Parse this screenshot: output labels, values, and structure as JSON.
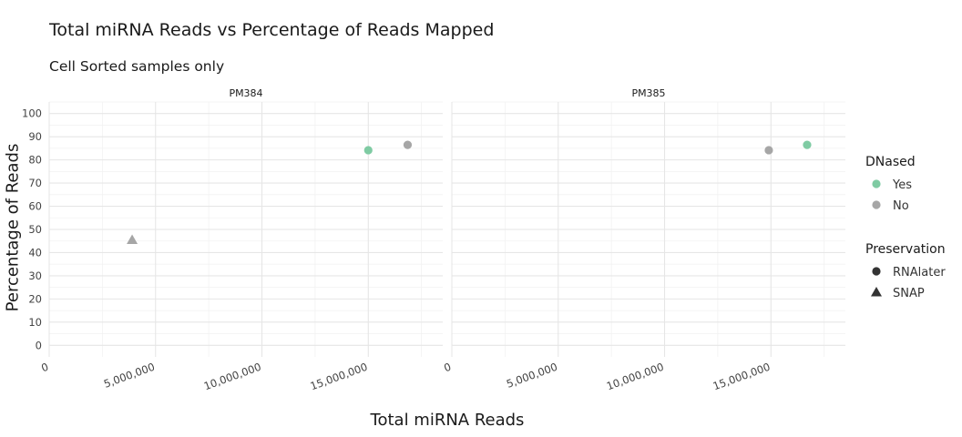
{
  "chart_data": {
    "type": "scatter",
    "title": "Total miRNA Reads vs Percentage of Reads Mapped",
    "subtitle": "Cell Sorted samples only",
    "xlabel": "Total miRNA Reads",
    "ylabel": "Percentage of Reads",
    "xlim": [
      0,
      18500000
    ],
    "ylim": [
      -5,
      105
    ],
    "x_ticks": [
      0,
      5000000,
      10000000,
      15000000
    ],
    "x_tick_labels": [
      "0",
      "5,000,000",
      "10,000,000",
      "15,000,000"
    ],
    "y_ticks": [
      0,
      10,
      20,
      30,
      40,
      50,
      60,
      70,
      80,
      90,
      100
    ],
    "y_tick_labels": [
      "0",
      "10",
      "20",
      "30",
      "40",
      "50",
      "60",
      "70",
      "80",
      "90",
      "100"
    ],
    "grid": true,
    "legend_position": "right",
    "colors": {
      "Yes": "#7fcba3",
      "No": "#a6a6a6",
      "legend_shape": "#333333"
    },
    "legend": {
      "color_title": "DNased",
      "color_entries": [
        "Yes",
        "No"
      ],
      "shape_title": "Preservation",
      "shape_entries": [
        {
          "label": "RNAlater",
          "shape": "circle"
        },
        {
          "label": "SNAP",
          "shape": "triangle"
        }
      ]
    },
    "panels": [
      {
        "label": "PM384",
        "points": [
          {
            "x": 3900000,
            "y": 45.5,
            "dnased": "No",
            "preservation": "SNAP"
          },
          {
            "x": 15000000,
            "y": 84.2,
            "dnased": "Yes",
            "preservation": "RNAlater"
          },
          {
            "x": 16850000,
            "y": 86.5,
            "dnased": "No",
            "preservation": "RNAlater"
          }
        ]
      },
      {
        "label": "PM385",
        "points": [
          {
            "x": 14900000,
            "y": 84.2,
            "dnased": "No",
            "preservation": "RNAlater"
          },
          {
            "x": 16700000,
            "y": 86.5,
            "dnased": "Yes",
            "preservation": "RNAlater"
          }
        ]
      }
    ]
  }
}
